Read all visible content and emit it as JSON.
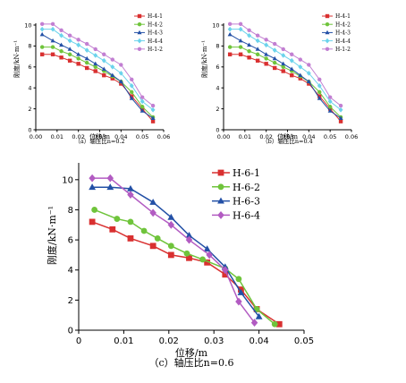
{
  "chart_data": [
    {
      "type": "line",
      "caption": "（a）轴压比n=0.2",
      "xlabel": "位移/m",
      "ylabel": "刚度/kN·m⁻¹",
      "xlim": [
        0,
        0.06
      ],
      "ylim": [
        0,
        10
      ],
      "xticks": [
        "0.00",
        "0.01",
        "0.02",
        "0.03",
        "0.04",
        "0.05",
        "0.06"
      ],
      "yticks": [
        "0",
        "2",
        "4",
        "6",
        "8",
        "10"
      ],
      "legend_position": "top-right",
      "series": [
        {
          "name": "H-4-1",
          "color": "#d93030",
          "marker": "square",
          "x": [
            0.003,
            0.008,
            0.012,
            0.016,
            0.02,
            0.024,
            0.028,
            0.032,
            0.036,
            0.04,
            0.045,
            0.05,
            0.055
          ],
          "y": [
            7.2,
            7.2,
            6.9,
            6.6,
            6.3,
            5.9,
            5.6,
            5.2,
            4.9,
            4.4,
            3.2,
            2.0,
            0.8
          ]
        },
        {
          "name": "H-4-2",
          "color": "#6fc43b",
          "marker": "circle",
          "x": [
            0.003,
            0.008,
            0.012,
            0.016,
            0.02,
            0.024,
            0.028,
            0.032,
            0.036,
            0.04,
            0.045,
            0.05,
            0.055
          ],
          "y": [
            7.9,
            7.9,
            7.5,
            7.2,
            6.8,
            6.4,
            6.0,
            5.6,
            5.1,
            4.6,
            3.6,
            2.2,
            1.2
          ]
        },
        {
          "name": "H-4-3",
          "color": "#2350a6",
          "marker": "triangle",
          "x": [
            0.003,
            0.008,
            0.012,
            0.016,
            0.02,
            0.024,
            0.028,
            0.032,
            0.036,
            0.04,
            0.045,
            0.05,
            0.055
          ],
          "y": [
            9.1,
            8.5,
            8.1,
            7.7,
            7.2,
            6.8,
            6.3,
            5.8,
            5.2,
            4.6,
            3.0,
            1.8,
            1.1
          ]
        },
        {
          "name": "H-4-4",
          "color": "#6bd3ec",
          "marker": "diamond",
          "x": [
            0.003,
            0.008,
            0.012,
            0.016,
            0.02,
            0.024,
            0.028,
            0.032,
            0.036,
            0.04,
            0.045,
            0.05,
            0.055
          ],
          "y": [
            9.6,
            9.6,
            9.0,
            8.5,
            8.1,
            7.6,
            7.1,
            6.6,
            6.0,
            5.4,
            4.2,
            2.7,
            1.9
          ]
        },
        {
          "name": "H-1-2",
          "color": "#c27fd2",
          "marker": "circle",
          "x": [
            0.003,
            0.008,
            0.012,
            0.016,
            0.02,
            0.024,
            0.028,
            0.032,
            0.036,
            0.04,
            0.045,
            0.05,
            0.055
          ],
          "y": [
            10.1,
            10.1,
            9.5,
            9.0,
            8.6,
            8.2,
            7.7,
            7.2,
            6.7,
            6.2,
            4.8,
            3.1,
            2.3
          ]
        }
      ]
    },
    {
      "type": "line",
      "caption": "（b）轴压比n=0.4",
      "xlabel": "位移/m",
      "ylabel": "刚度/kN·m⁻¹",
      "xlim": [
        0,
        0.06
      ],
      "ylim": [
        0,
        10
      ],
      "xticks": [
        "0.00",
        "0.01",
        "0.02",
        "0.03",
        "0.04",
        "0.05",
        "0.06"
      ],
      "yticks": [
        "0",
        "2",
        "4",
        "6",
        "8",
        "10"
      ],
      "legend_position": "top-right",
      "series": [
        {
          "name": "H-4-1",
          "color": "#d93030",
          "marker": "square",
          "x": [
            0.003,
            0.008,
            0.012,
            0.016,
            0.02,
            0.024,
            0.028,
            0.032,
            0.036,
            0.04,
            0.045,
            0.05,
            0.055
          ],
          "y": [
            7.2,
            7.2,
            6.9,
            6.6,
            6.3,
            5.9,
            5.6,
            5.2,
            4.9,
            4.4,
            3.2,
            2.0,
            0.8
          ]
        },
        {
          "name": "H-4-2",
          "color": "#6fc43b",
          "marker": "circle",
          "x": [
            0.003,
            0.008,
            0.012,
            0.016,
            0.02,
            0.024,
            0.028,
            0.032,
            0.036,
            0.04,
            0.045,
            0.05,
            0.055
          ],
          "y": [
            7.9,
            7.9,
            7.5,
            7.2,
            6.8,
            6.4,
            6.0,
            5.6,
            5.1,
            4.6,
            3.6,
            2.2,
            1.2
          ]
        },
        {
          "name": "H-4-3",
          "color": "#2350a6",
          "marker": "triangle",
          "x": [
            0.003,
            0.008,
            0.012,
            0.016,
            0.02,
            0.024,
            0.028,
            0.032,
            0.036,
            0.04,
            0.045,
            0.05,
            0.055
          ],
          "y": [
            9.1,
            8.5,
            8.1,
            7.7,
            7.2,
            6.8,
            6.3,
            5.8,
            5.2,
            4.6,
            3.0,
            1.8,
            1.1
          ]
        },
        {
          "name": "H-4-4",
          "color": "#6bd3ec",
          "marker": "diamond",
          "x": [
            0.003,
            0.008,
            0.012,
            0.016,
            0.02,
            0.024,
            0.028,
            0.032,
            0.036,
            0.04,
            0.045,
            0.05,
            0.055
          ],
          "y": [
            9.6,
            9.6,
            9.0,
            8.5,
            8.1,
            7.6,
            7.1,
            6.6,
            6.0,
            5.4,
            4.2,
            2.7,
            1.9
          ]
        },
        {
          "name": "H-1-2",
          "color": "#c27fd2",
          "marker": "circle",
          "x": [
            0.003,
            0.008,
            0.012,
            0.016,
            0.02,
            0.024,
            0.028,
            0.032,
            0.036,
            0.04,
            0.045,
            0.05,
            0.055
          ],
          "y": [
            10.1,
            10.1,
            9.5,
            9.0,
            8.6,
            8.2,
            7.7,
            7.2,
            6.7,
            6.2,
            4.8,
            3.1,
            2.3
          ]
        }
      ]
    },
    {
      "type": "line",
      "caption": "（c）轴压比n=0.6",
      "xlabel": "位移/m",
      "ylabel": "刚度/kN·m⁻¹",
      "xlim": [
        0,
        0.05
      ],
      "ylim": [
        0,
        11
      ],
      "xticks": [
        "0",
        "0.01",
        "0.02",
        "0.03",
        "0.04",
        "0.05"
      ],
      "yticks": [
        "0",
        "2",
        "4",
        "6",
        "8",
        "10"
      ],
      "legend_position": "top-right",
      "series": [
        {
          "name": "H-6-1",
          "color": "#d93030",
          "marker": "square",
          "x": [
            0.003,
            0.0075,
            0.0115,
            0.0165,
            0.0205,
            0.0245,
            0.0285,
            0.0325,
            0.036,
            0.0395,
            0.0445
          ],
          "y": [
            7.2,
            6.7,
            6.1,
            5.6,
            5.0,
            4.8,
            4.5,
            3.7,
            2.7,
            1.4,
            0.4
          ]
        },
        {
          "name": "H-6-2",
          "color": "#6fc43b",
          "marker": "circle",
          "x": [
            0.0035,
            0.0085,
            0.0115,
            0.0145,
            0.0175,
            0.0205,
            0.024,
            0.0275,
            0.0325,
            0.0355,
            0.0395,
            0.0435
          ],
          "y": [
            8.0,
            7.4,
            7.2,
            6.6,
            6.1,
            5.6,
            5.1,
            4.7,
            4.1,
            3.4,
            1.4,
            0.4
          ]
        },
        {
          "name": "H-6-3",
          "color": "#2350a6",
          "marker": "triangle",
          "x": [
            0.003,
            0.007,
            0.0115,
            0.0165,
            0.0205,
            0.0245,
            0.0285,
            0.0325,
            0.036,
            0.04
          ],
          "y": [
            9.5,
            9.5,
            9.4,
            8.5,
            7.5,
            6.3,
            5.4,
            4.2,
            2.5,
            0.9
          ]
        },
        {
          "name": "H-6-4",
          "color": "#b25bc2",
          "marker": "diamond",
          "x": [
            0.003,
            0.007,
            0.0115,
            0.0165,
            0.0205,
            0.0245,
            0.029,
            0.0325,
            0.0355,
            0.039
          ],
          "y": [
            10.1,
            10.1,
            9.0,
            7.8,
            7.0,
            6.0,
            5.0,
            4.0,
            1.9,
            0.5
          ]
        }
      ]
    }
  ]
}
